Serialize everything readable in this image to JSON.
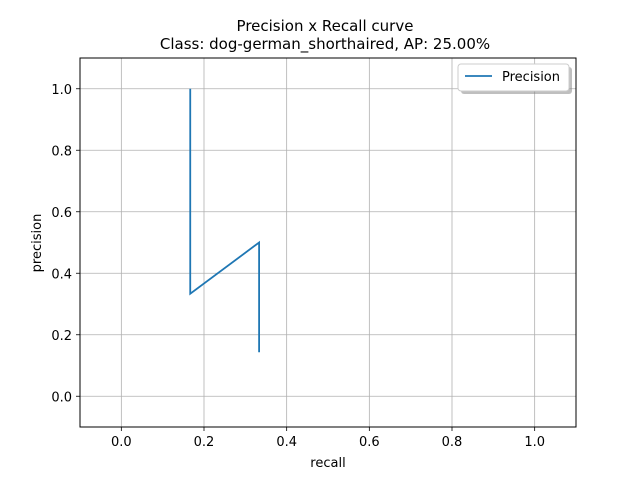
{
  "chart_data": {
    "type": "line",
    "title": "Precision x Recall curve",
    "subtitle": "Class: dog-german_shorthaired, AP: 25.00%",
    "xlabel": "recall",
    "ylabel": "precision",
    "xlim": [
      -0.1,
      1.1
    ],
    "ylim": [
      -0.1,
      1.1
    ],
    "xticks": [
      0.0,
      0.2,
      0.4,
      0.6,
      0.8,
      1.0
    ],
    "yticks": [
      0.0,
      0.2,
      0.4,
      0.6,
      0.8,
      1.0
    ],
    "xtick_labels": [
      "0.0",
      "0.2",
      "0.4",
      "0.6",
      "0.8",
      "1.0"
    ],
    "ytick_labels": [
      "0.0",
      "0.2",
      "0.4",
      "0.6",
      "0.8",
      "1.0"
    ],
    "grid": true,
    "legend_position": "top-right",
    "series": [
      {
        "name": "Precision",
        "color": "#1f77b4",
        "x": [
          0.1667,
          0.1667,
          0.3333,
          0.3333
        ],
        "y": [
          1.0,
          0.3333,
          0.5,
          0.1429
        ]
      }
    ]
  }
}
